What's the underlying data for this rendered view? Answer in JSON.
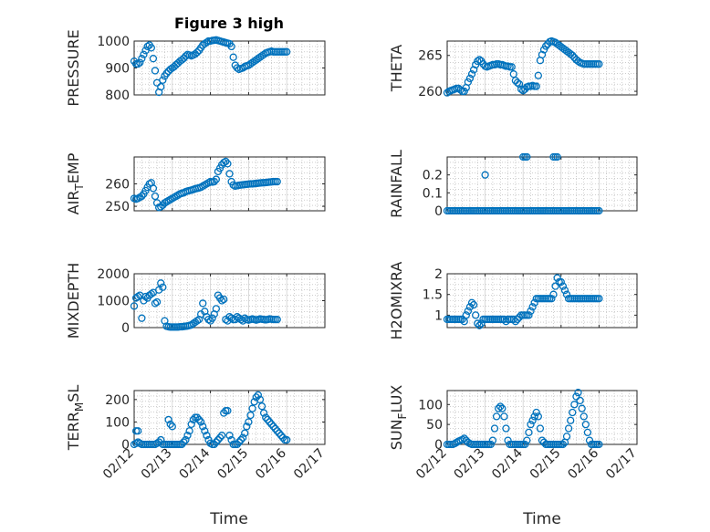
{
  "figure": {
    "title": "Figure 3 high",
    "xlabel": "Time",
    "x_ticks": [
      "02/12",
      "02/13",
      "02/14",
      "02/15",
      "02/16",
      "02/17"
    ]
  },
  "colors": {
    "marker": "#0072bd",
    "axis": "#262626",
    "grid": "#b0b0b0"
  },
  "chart_data": [
    {
      "type": "scatter",
      "ylabel": "PRESSURE",
      "ylim": [
        800,
        1000
      ],
      "yticks": [
        800,
        900,
        1000
      ],
      "x": [
        0.0,
        0.05,
        0.1,
        0.15,
        0.2,
        0.25,
        0.3,
        0.35,
        0.4,
        0.45,
        0.5,
        0.55,
        0.6,
        0.65,
        0.7,
        0.75,
        0.8,
        0.85,
        0.9,
        0.95,
        1.0,
        1.05,
        1.1,
        1.15,
        1.2,
        1.25,
        1.3,
        1.35,
        1.4,
        1.45,
        1.5,
        1.55,
        1.6,
        1.65,
        1.7,
        1.75,
        1.8,
        1.85,
        1.9,
        1.95,
        2.0,
        2.05,
        2.1,
        2.15,
        2.2,
        2.25,
        2.3,
        2.35,
        2.4,
        2.45,
        2.5,
        2.55,
        2.6,
        2.65,
        2.7,
        2.75,
        2.8,
        2.85,
        2.9,
        2.95,
        3.0,
        3.05,
        3.1,
        3.15,
        3.2,
        3.25,
        3.3,
        3.35,
        3.4,
        3.45,
        3.5,
        3.55,
        3.6,
        3.65,
        3.7,
        3.75,
        3.8,
        3.85,
        3.9,
        3.95,
        4.0
      ],
      "y": [
        925,
        915,
        915,
        920,
        935,
        950,
        965,
        980,
        985,
        975,
        935,
        890,
        845,
        810,
        830,
        855,
        870,
        880,
        888,
        895,
        900,
        905,
        912,
        918,
        925,
        930,
        936,
        944,
        950,
        948,
        945,
        948,
        952,
        958,
        965,
        975,
        985,
        990,
        995,
        1000,
        1000,
        1002,
        1003,
        1004,
        1002,
        1000,
        998,
        996,
        994,
        992,
        990,
        980,
        940,
        910,
        900,
        895,
        898,
        900,
        905,
        908,
        910,
        915,
        920,
        925,
        930,
        935,
        940,
        945,
        950,
        955,
        958,
        960,
        962,
        960,
        960,
        960,
        960,
        960,
        960,
        960,
        960
      ]
    },
    {
      "type": "scatter",
      "ylabel": "THETA",
      "ylim": [
        259.5,
        267
      ],
      "yticks": [
        260,
        265
      ],
      "x": [
        0.0,
        0.05,
        0.1,
        0.15,
        0.2,
        0.25,
        0.3,
        0.35,
        0.4,
        0.45,
        0.5,
        0.55,
        0.6,
        0.65,
        0.7,
        0.75,
        0.8,
        0.85,
        0.9,
        0.95,
        1.0,
        1.05,
        1.1,
        1.15,
        1.2,
        1.25,
        1.3,
        1.35,
        1.4,
        1.45,
        1.5,
        1.55,
        1.6,
        1.65,
        1.7,
        1.75,
        1.8,
        1.85,
        1.9,
        1.95,
        2.0,
        2.05,
        2.1,
        2.15,
        2.2,
        2.25,
        2.3,
        2.35,
        2.4,
        2.45,
        2.5,
        2.55,
        2.6,
        2.65,
        2.7,
        2.75,
        2.8,
        2.85,
        2.9,
        2.95,
        3.0,
        3.05,
        3.1,
        3.15,
        3.2,
        3.25,
        3.3,
        3.35,
        3.4,
        3.45,
        3.5,
        3.55,
        3.6,
        3.65,
        3.7,
        3.75,
        3.8,
        3.85,
        3.9,
        3.95,
        4.0
      ],
      "y": [
        259.8,
        260.0,
        260.1,
        260.2,
        260.3,
        260.4,
        260.4,
        260.2,
        260.0,
        260.0,
        260.5,
        261.3,
        261.8,
        262.4,
        263.0,
        263.7,
        264.2,
        264.4,
        264.2,
        263.8,
        263.5,
        263.4,
        263.5,
        263.6,
        263.7,
        263.7,
        263.8,
        263.8,
        263.7,
        263.7,
        263.6,
        263.5,
        263.5,
        263.4,
        263.4,
        262.4,
        261.5,
        261.2,
        261.0,
        260.3,
        260.1,
        260.3,
        260.6,
        260.7,
        260.7,
        260.8,
        260.7,
        260.7,
        262.2,
        264.3,
        265.1,
        265.8,
        266.3,
        266.6,
        266.9,
        267.0,
        266.9,
        266.8,
        266.6,
        266.4,
        266.2,
        266.0,
        265.8,
        265.6,
        265.4,
        265.2,
        265.0,
        264.7,
        264.4,
        264.2,
        264.0,
        263.9,
        263.8,
        263.8,
        263.8,
        263.8,
        263.8,
        263.8,
        263.8,
        263.8,
        263.8
      ]
    },
    {
      "type": "scatter",
      "ylabel": "AIR_TEMP",
      "ylim": [
        248,
        272
      ],
      "yticks": [
        250,
        260
      ],
      "x": [
        0.0,
        0.05,
        0.1,
        0.15,
        0.2,
        0.25,
        0.3,
        0.35,
        0.4,
        0.45,
        0.5,
        0.55,
        0.6,
        0.65,
        0.7,
        0.75,
        0.8,
        0.85,
        0.9,
        0.95,
        1.0,
        1.05,
        1.1,
        1.15,
        1.2,
        1.25,
        1.3,
        1.35,
        1.4,
        1.45,
        1.5,
        1.55,
        1.6,
        1.65,
        1.7,
        1.75,
        1.8,
        1.85,
        1.9,
        1.95,
        2.0,
        2.05,
        2.1,
        2.15,
        2.2,
        2.25,
        2.3,
        2.35,
        2.4,
        2.45,
        2.5,
        2.55,
        2.6,
        2.65,
        2.7,
        2.75,
        2.8,
        2.85,
        2.9,
        2.95,
        3.0,
        3.05,
        3.1,
        3.15,
        3.2,
        3.25,
        3.3,
        3.35,
        3.4,
        3.45,
        3.5,
        3.55,
        3.6,
        3.65,
        3.7,
        3.75
      ],
      "y": [
        253.5,
        253.2,
        253.5,
        254.0,
        254.5,
        255.5,
        257.0,
        258.5,
        260.0,
        260.5,
        258.0,
        254.5,
        251.5,
        249.5,
        249.8,
        250.5,
        251.5,
        252.0,
        252.5,
        253.0,
        253.5,
        254.0,
        254.5,
        255.0,
        255.5,
        255.8,
        256.0,
        256.5,
        256.8,
        257.0,
        257.2,
        257.5,
        257.8,
        258.0,
        258.2,
        258.5,
        259.0,
        259.5,
        260.0,
        260.5,
        261.0,
        260.8,
        261.0,
        262.0,
        265.5,
        267.0,
        268.5,
        269.5,
        270.0,
        269.0,
        264.5,
        261.0,
        259.5,
        259.0,
        259.2,
        259.4,
        259.5,
        259.6,
        259.7,
        259.8,
        259.9,
        260.0,
        260.0,
        260.1,
        260.2,
        260.3,
        260.4,
        260.5,
        260.5,
        260.6,
        260.7,
        260.8,
        260.9,
        261.0,
        261.0,
        261.0
      ]
    },
    {
      "type": "scatter",
      "ylabel": "RAINFALL",
      "ylim": [
        0,
        0.3
      ],
      "yticks": [
        0,
        0.1,
        0.2
      ],
      "x": [
        0.0,
        0.05,
        0.1,
        0.15,
        0.2,
        0.25,
        0.3,
        0.35,
        0.4,
        0.45,
        0.5,
        0.55,
        0.6,
        0.65,
        0.7,
        0.75,
        0.8,
        0.85,
        0.9,
        0.95,
        1.0,
        1.05,
        1.1,
        1.15,
        1.2,
        1.25,
        1.3,
        1.35,
        1.4,
        1.45,
        1.5,
        1.55,
        1.6,
        1.65,
        1.7,
        1.75,
        1.8,
        1.85,
        1.9,
        1.95,
        2.0,
        2.05,
        2.1,
        2.15,
        2.2,
        2.25,
        2.3,
        2.35,
        2.4,
        2.45,
        2.5,
        2.55,
        2.6,
        2.65,
        2.7,
        2.75,
        2.8,
        2.85,
        2.9,
        2.95,
        3.0,
        3.05,
        3.1,
        3.15,
        3.2,
        3.25,
        3.3,
        3.35,
        3.4,
        3.45,
        3.5,
        3.55,
        3.6,
        3.65,
        3.7,
        3.75,
        3.8,
        3.85,
        3.9,
        3.95,
        4.0,
        1.0,
        2.0,
        2.05,
        2.1,
        2.8,
        2.85,
        2.9
      ],
      "y": [
        0,
        0,
        0,
        0,
        0,
        0,
        0,
        0,
        0,
        0,
        0,
        0,
        0,
        0,
        0,
        0,
        0,
        0,
        0,
        0,
        0,
        0,
        0,
        0,
        0,
        0,
        0,
        0,
        0,
        0,
        0,
        0,
        0,
        0,
        0,
        0,
        0,
        0,
        0,
        0,
        0,
        0,
        0,
        0,
        0,
        0,
        0,
        0,
        0,
        0,
        0,
        0,
        0,
        0,
        0,
        0,
        0,
        0,
        0,
        0,
        0,
        0,
        0,
        0,
        0,
        0,
        0,
        0,
        0,
        0,
        0,
        0,
        0,
        0,
        0,
        0,
        0,
        0,
        0,
        0,
        0,
        0.2,
        0.3,
        0.3,
        0.3,
        0.3,
        0.3,
        0.3
      ]
    },
    {
      "type": "scatter",
      "ylabel": "MIXDEPTH",
      "ylim": [
        0,
        2000
      ],
      "yticks": [
        0,
        1000,
        2000
      ],
      "x": [
        0.0,
        0.05,
        0.1,
        0.15,
        0.2,
        0.25,
        0.3,
        0.35,
        0.4,
        0.45,
        0.5,
        0.55,
        0.6,
        0.65,
        0.7,
        0.75,
        0.8,
        0.85,
        0.9,
        0.95,
        1.0,
        1.05,
        1.1,
        1.15,
        1.2,
        1.25,
        1.3,
        1.35,
        1.4,
        1.45,
        1.5,
        1.55,
        1.6,
        1.65,
        1.7,
        1.75,
        1.8,
        1.85,
        1.9,
        1.95,
        2.0,
        2.05,
        2.1,
        2.15,
        2.2,
        2.25,
        2.3,
        2.35,
        2.4,
        2.45,
        2.5,
        2.55,
        2.6,
        2.65,
        2.7,
        2.75,
        2.8,
        2.85,
        2.9,
        2.95,
        3.0,
        3.05,
        3.1,
        3.15,
        3.2,
        3.25,
        3.3,
        3.35,
        3.4,
        3.45,
        3.5,
        3.55,
        3.6,
        3.65,
        3.7,
        3.75
      ],
      "y": [
        800,
        1100,
        1150,
        1200,
        350,
        1000,
        1150,
        1100,
        1200,
        1250,
        1300,
        900,
        950,
        1400,
        1650,
        1500,
        250,
        50,
        30,
        20,
        20,
        20,
        20,
        20,
        30,
        30,
        40,
        50,
        60,
        80,
        100,
        150,
        200,
        250,
        300,
        500,
        900,
        600,
        400,
        300,
        250,
        350,
        500,
        700,
        1200,
        1100,
        1000,
        1050,
        300,
        250,
        400,
        350,
        300,
        300,
        400,
        350,
        300,
        250,
        350,
        300,
        280,
        300,
        320,
        300,
        280,
        300,
        320,
        310,
        300,
        290,
        300,
        320,
        310,
        300,
        300,
        300
      ]
    },
    {
      "type": "scatter",
      "ylabel": "H2OMIXRA",
      "ylim": [
        0.7,
        2.0
      ],
      "yticks": [
        1,
        1.5,
        2
      ],
      "x": [
        0.0,
        0.05,
        0.1,
        0.15,
        0.2,
        0.25,
        0.3,
        0.35,
        0.4,
        0.45,
        0.5,
        0.55,
        0.6,
        0.65,
        0.7,
        0.75,
        0.8,
        0.85,
        0.9,
        0.95,
        1.0,
        1.05,
        1.1,
        1.15,
        1.2,
        1.25,
        1.3,
        1.35,
        1.4,
        1.45,
        1.5,
        1.55,
        1.6,
        1.65,
        1.7,
        1.75,
        1.8,
        1.85,
        1.9,
        1.95,
        2.0,
        2.05,
        2.1,
        2.15,
        2.2,
        2.25,
        2.3,
        2.35,
        2.4,
        2.45,
        2.5,
        2.55,
        2.6,
        2.65,
        2.7,
        2.75,
        2.8,
        2.85,
        2.9,
        2.95,
        3.0,
        3.05,
        3.1,
        3.15,
        3.2,
        3.25,
        3.3,
        3.35,
        3.4,
        3.45,
        3.5,
        3.55,
        3.6,
        3.65,
        3.7,
        3.75,
        3.8,
        3.85,
        3.9,
        3.95,
        4.0
      ],
      "y": [
        0.9,
        0.9,
        0.9,
        0.9,
        0.9,
        0.9,
        0.9,
        0.9,
        0.9,
        0.85,
        1.0,
        1.1,
        1.2,
        1.3,
        1.25,
        1.0,
        0.8,
        0.75,
        0.8,
        0.9,
        0.9,
        0.9,
        0.9,
        0.9,
        0.9,
        0.9,
        0.9,
        0.9,
        0.9,
        0.9,
        0.9,
        0.85,
        0.9,
        0.9,
        0.9,
        0.9,
        0.85,
        0.9,
        0.95,
        1.0,
        1.0,
        1.0,
        1.0,
        1.0,
        1.1,
        1.2,
        1.3,
        1.4,
        1.4,
        1.4,
        1.4,
        1.4,
        1.4,
        1.4,
        1.4,
        1.4,
        1.5,
        1.7,
        1.9,
        1.8,
        1.8,
        1.7,
        1.6,
        1.5,
        1.4,
        1.4,
        1.4,
        1.4,
        1.4,
        1.4,
        1.4,
        1.4,
        1.4,
        1.4,
        1.4,
        1.4,
        1.4,
        1.4,
        1.4,
        1.4,
        1.4
      ]
    },
    {
      "type": "scatter",
      "ylabel": "TERR_MSL",
      "ylim": [
        0,
        240
      ],
      "yticks": [
        0,
        100,
        200
      ],
      "x": [
        0.0,
        0.05,
        0.1,
        0.15,
        0.2,
        0.25,
        0.3,
        0.35,
        0.4,
        0.45,
        0.5,
        0.55,
        0.6,
        0.65,
        0.7,
        0.75,
        0.8,
        0.85,
        0.9,
        0.95,
        1.0,
        1.05,
        1.1,
        1.15,
        1.2,
        1.25,
        1.3,
        1.35,
        1.4,
        1.45,
        1.5,
        1.55,
        1.6,
        1.65,
        1.7,
        1.75,
        1.8,
        1.85,
        1.9,
        1.95,
        2.0,
        2.05,
        2.1,
        2.15,
        2.2,
        2.25,
        2.3,
        2.35,
        2.4,
        2.45,
        2.5,
        2.55,
        2.6,
        2.65,
        2.7,
        2.75,
        2.8,
        2.85,
        2.9,
        2.95,
        3.0,
        3.05,
        3.1,
        3.15,
        3.2,
        3.25,
        3.3,
        3.35,
        3.4,
        3.45,
        3.5,
        3.55,
        3.6,
        3.65,
        3.7,
        3.75,
        3.8,
        3.85,
        3.9,
        3.95,
        4.0,
        0.05,
        0.1,
        0.9,
        0.95,
        1.0
      ],
      "y": [
        0,
        5,
        10,
        5,
        0,
        0,
        0,
        0,
        0,
        0,
        0,
        0,
        5,
        10,
        20,
        0,
        0,
        0,
        0,
        0,
        0,
        0,
        0,
        0,
        0,
        0,
        10,
        20,
        40,
        60,
        90,
        110,
        120,
        120,
        110,
        100,
        80,
        60,
        40,
        20,
        5,
        0,
        0,
        10,
        20,
        30,
        40,
        140,
        150,
        150,
        40,
        20,
        0,
        0,
        0,
        10,
        20,
        30,
        50,
        80,
        100,
        130,
        160,
        190,
        210,
        220,
        200,
        170,
        140,
        120,
        110,
        100,
        90,
        80,
        70,
        60,
        50,
        40,
        30,
        20,
        20,
        60,
        60,
        110,
        90,
        80
      ]
    },
    {
      "type": "scatter",
      "ylabel": "SUN_FLUX",
      "ylim": [
        0,
        135
      ],
      "yticks": [
        0,
        50,
        100
      ],
      "x": [
        0.0,
        0.05,
        0.1,
        0.15,
        0.2,
        0.25,
        0.3,
        0.35,
        0.4,
        0.45,
        0.5,
        0.55,
        0.6,
        0.65,
        0.7,
        0.75,
        0.8,
        0.85,
        0.9,
        0.95,
        1.0,
        1.05,
        1.1,
        1.15,
        1.2,
        1.25,
        1.3,
        1.35,
        1.4,
        1.45,
        1.5,
        1.55,
        1.6,
        1.65,
        1.7,
        1.75,
        1.8,
        1.85,
        1.9,
        1.95,
        2.0,
        2.05,
        2.1,
        2.15,
        2.2,
        2.25,
        2.3,
        2.35,
        2.4,
        2.45,
        2.5,
        2.55,
        2.6,
        2.65,
        2.7,
        2.75,
        2.8,
        2.85,
        2.9,
        2.95,
        3.0,
        3.05,
        3.1,
        3.15,
        3.2,
        3.25,
        3.3,
        3.35,
        3.4,
        3.45,
        3.5,
        3.55,
        3.6,
        3.65,
        3.7,
        3.75,
        3.8,
        3.85,
        3.9,
        3.95,
        4.0
      ],
      "y": [
        0,
        0,
        0,
        0,
        2,
        5,
        8,
        10,
        12,
        15,
        10,
        5,
        2,
        0,
        0,
        0,
        0,
        0,
        0,
        0,
        0,
        0,
        0,
        0,
        10,
        40,
        70,
        90,
        95,
        90,
        70,
        40,
        10,
        0,
        0,
        0,
        0,
        0,
        0,
        0,
        0,
        0,
        10,
        30,
        50,
        60,
        70,
        80,
        70,
        40,
        10,
        5,
        0,
        0,
        0,
        0,
        0,
        0,
        0,
        0,
        0,
        0,
        5,
        20,
        40,
        60,
        80,
        100,
        120,
        130,
        110,
        90,
        70,
        50,
        30,
        10,
        0,
        0,
        0,
        0,
        0
      ]
    }
  ]
}
